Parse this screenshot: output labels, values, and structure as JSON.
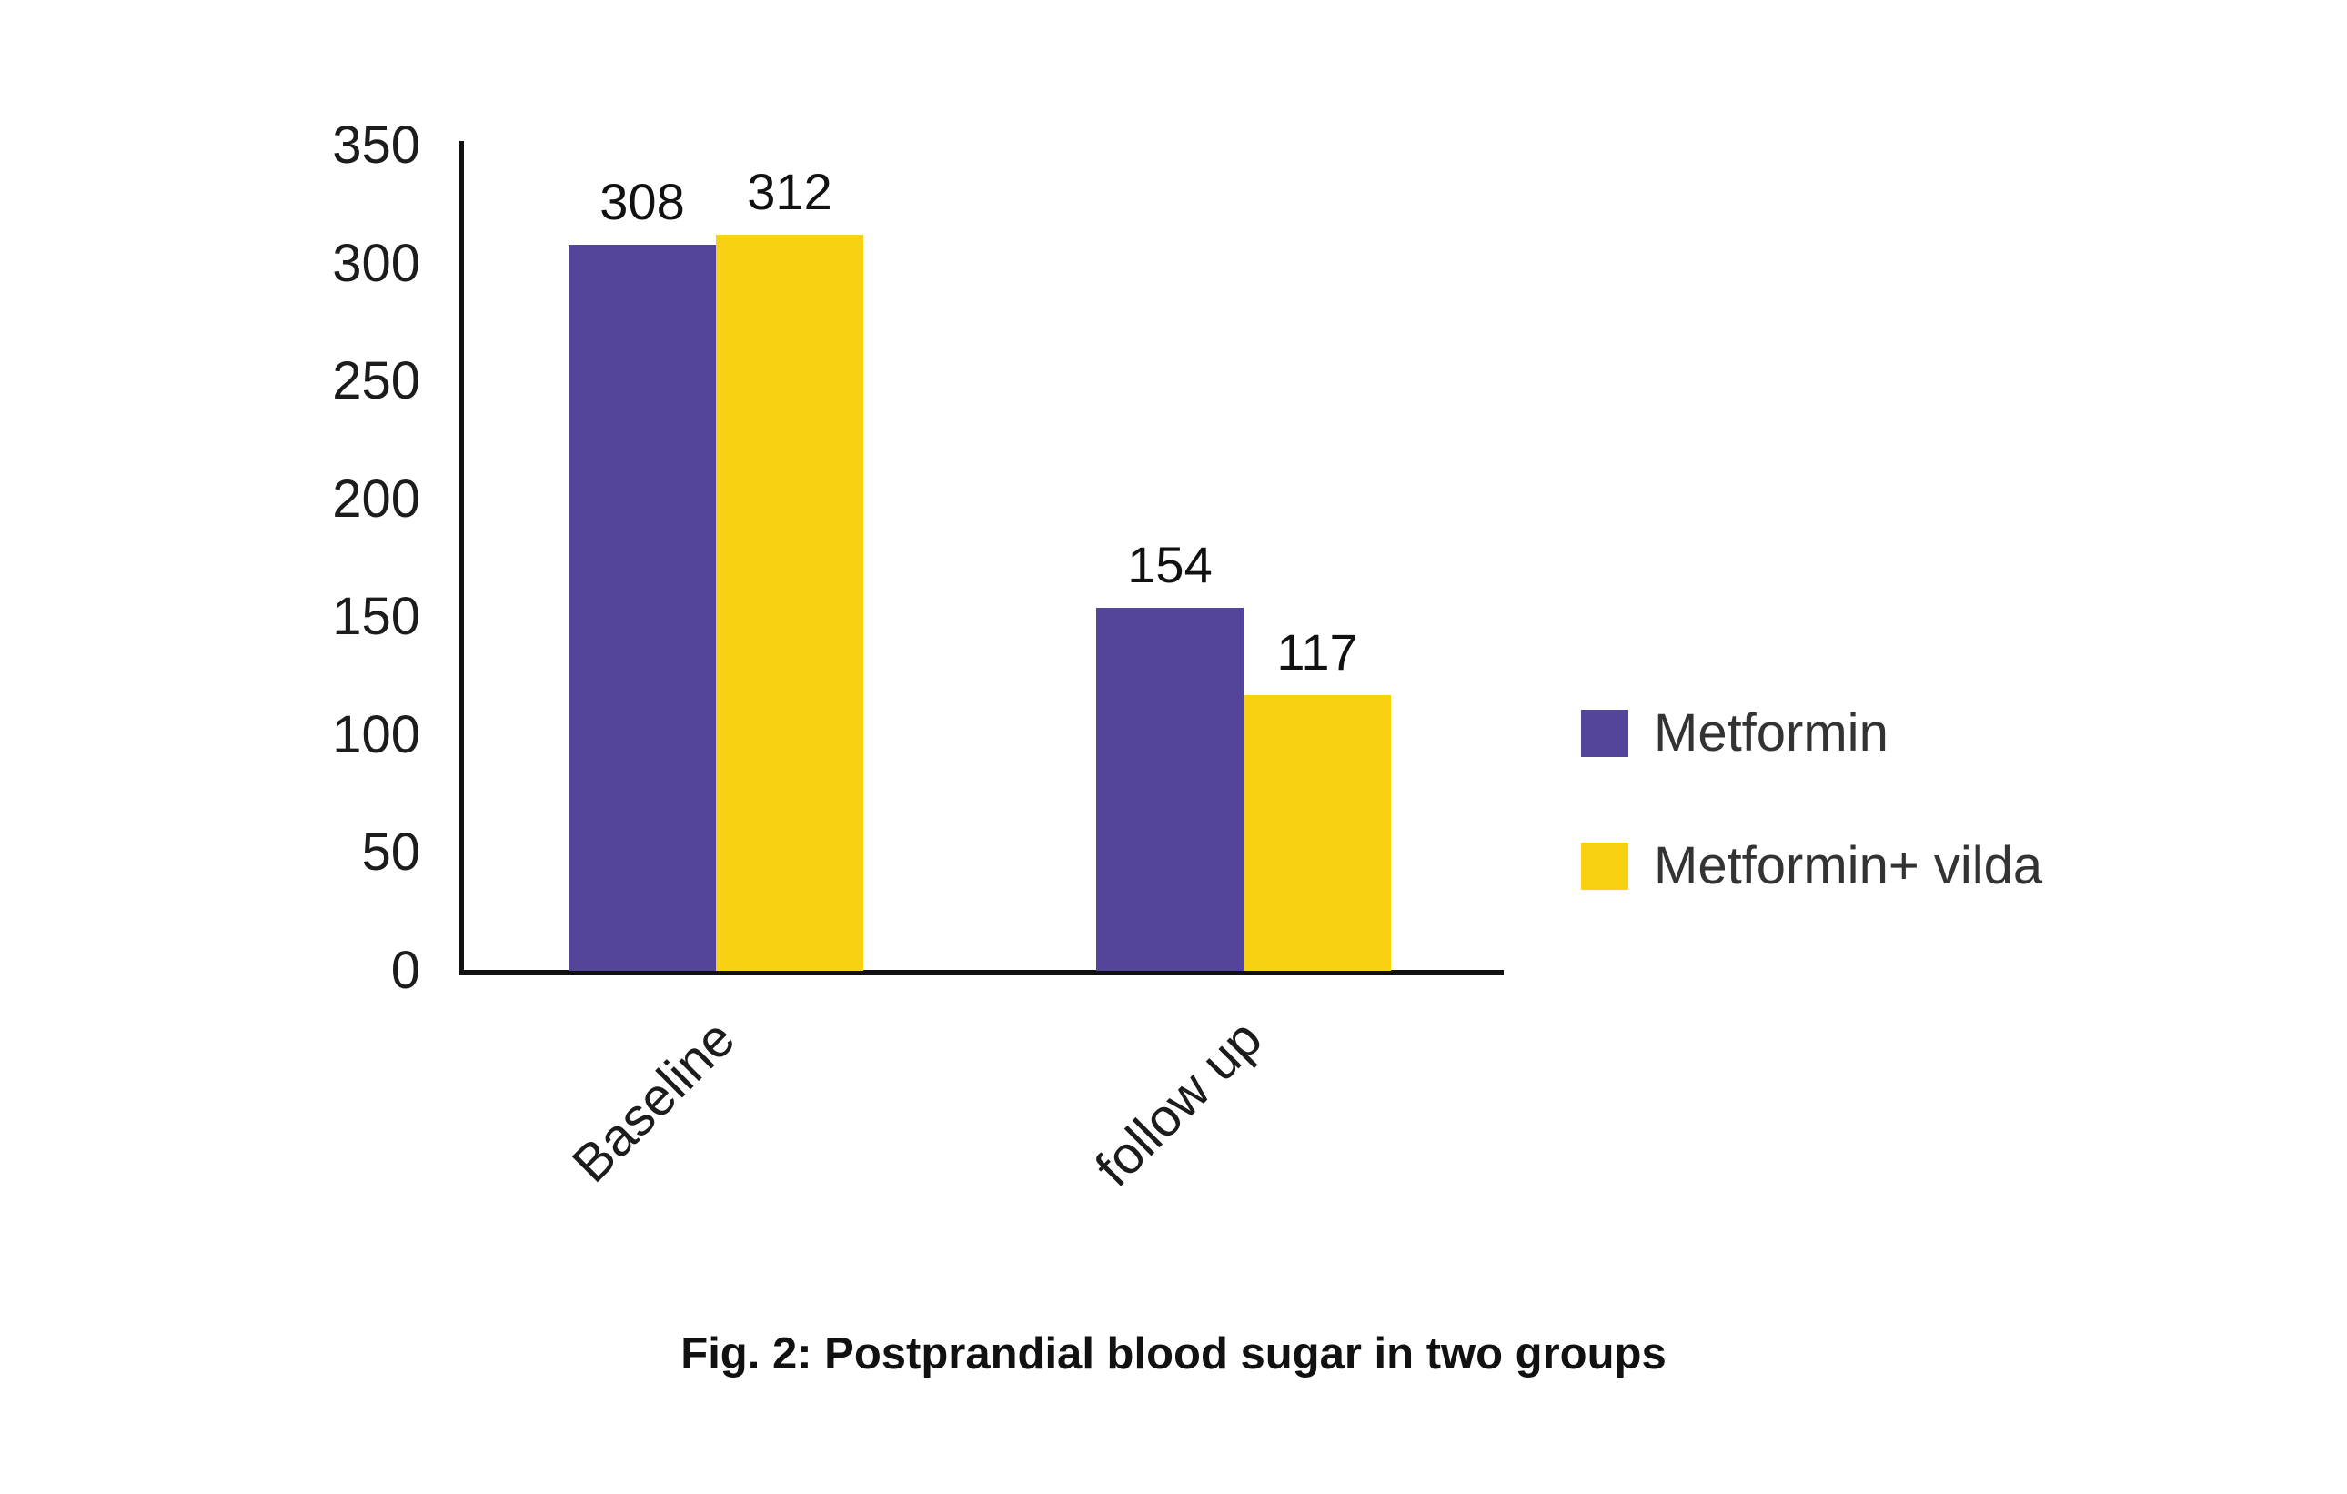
{
  "chart_data": {
    "type": "bar",
    "title": "",
    "caption": "Fig. 2: Postprandial blood sugar in two groups",
    "categories": [
      "Baseline",
      "follow up"
    ],
    "series": [
      {
        "name": "Metformin",
        "color": "#55459A",
        "values": [
          308,
          154
        ]
      },
      {
        "name": "Metformin+ vilda",
        "color": "#F8D212",
        "values": [
          312,
          117
        ]
      }
    ],
    "ylim": [
      0,
      350
    ],
    "ytick_step": 50,
    "y_tick_labels": [
      "350",
      "300",
      "250",
      "200",
      "150",
      "100",
      "50",
      "0"
    ],
    "xlabel": "",
    "ylabel": "",
    "grid": "off",
    "data_labels_shown": true,
    "legend_position": "right",
    "x_label_rotation_deg": 45,
    "colors": {
      "axis": "#111111",
      "tick_text": "#1c1c1c",
      "value_label_text": "#111111",
      "legend_text": "#333333",
      "background": "#ffffff"
    }
  }
}
